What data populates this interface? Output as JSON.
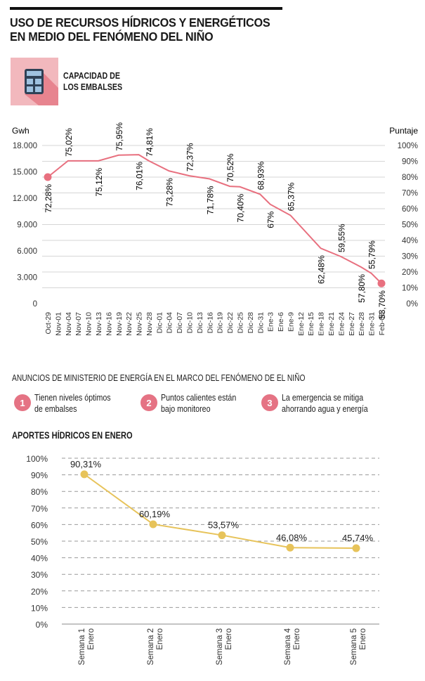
{
  "header": {
    "title_line1": "USO DE RECURSOS HÍDRICOS Y ENERGÉTICOS",
    "title_line2": "EN MEDIO DEL FENÓMENO DEL NIÑO",
    "section_icon": "calculator-icon",
    "section_line1": "CAPACIDAD DE",
    "section_line2": "LOS EMBALSES"
  },
  "colors": {
    "reservoir_line": "#e8707f",
    "inflow_line": "#e7c35a",
    "icon_bg": "#f2b8bd",
    "icon_shadow": "#e7848f",
    "badge": "#e57384"
  },
  "announcements": {
    "title": "ANUNCIOS DE MINISTERIO DE ENERGÍA EN EL MARCO DEL FENÓMENO DE EL NIÑO",
    "items": [
      {
        "number": "1",
        "line1": "Tienen niveles óptimos",
        "line2": "de embalses"
      },
      {
        "number": "2",
        "line1": "Puntos calientes están",
        "line2": "bajo monitoreo"
      },
      {
        "number": "3",
        "line1": "La emergencia se mitiga",
        "line2": "ahorrando agua y energía"
      }
    ]
  },
  "section2_title": "APORTES HÍDRICOS EN ENERO",
  "chart_data": [
    {
      "type": "line",
      "ylabel_left": "Gwh",
      "ylabel_right": "Puntaje",
      "yticks_left": [
        "18.000",
        "15.000",
        "12.000",
        "9.000",
        "6.000",
        "3.000",
        "0"
      ],
      "yticks_right": [
        "100%",
        "90%",
        "80%",
        "70%",
        "60%",
        "50%",
        "40%",
        "30%",
        "20%",
        "10%",
        "0%"
      ],
      "ylim_left": [
        0,
        18000
      ],
      "ylim_right": [
        0,
        100
      ],
      "grid": true,
      "categories": [
        "Oct-29",
        "Nov-01",
        "Nov-04",
        "Nov-07",
        "Nov-10",
        "Nov-13",
        "Nov-16",
        "Nov-19",
        "Nov-22",
        "Nov-25",
        "Nov-28",
        "Dic-01",
        "Dic-04",
        "Dic-07",
        "Dic-10",
        "Dic-13",
        "Dic-16",
        "Dic-19",
        "Dic-22",
        "Dic-25",
        "Dic-28",
        "Dic-31",
        "Ene-3",
        "Ene-6",
        "Ene-9",
        "Ene-12",
        "Ene-15",
        "Ene-18",
        "Ene-21",
        "Ene-24",
        "Ene-27",
        "Ene-28",
        "Ene-31",
        "Feb-08"
      ],
      "series": [
        {
          "points": [
            {
              "x": "Oct-29",
              "y": 14400,
              "label": "72,28%"
            },
            {
              "x": "Nov-04",
              "y": 16250,
              "label": "75,02%"
            },
            {
              "x": "Nov-13",
              "y": 16250,
              "label": "75,12%"
            },
            {
              "x": "Nov-19",
              "y": 16900,
              "label": "75,95%"
            },
            {
              "x": "Nov-25",
              "y": 16950,
              "label": "76,01%"
            },
            {
              "x": "Nov-28",
              "y": 16250,
              "label": "74,81%"
            },
            {
              "x": "Dic-04",
              "y": 15100,
              "label": "73,28%"
            },
            {
              "x": "Dic-10",
              "y": 14550,
              "label": "72,37%"
            },
            {
              "x": "Dic-16",
              "y": 14200,
              "label": "71,78%"
            },
            {
              "x": "Dic-22",
              "y": 13350,
              "label": "70,52%"
            },
            {
              "x": "Dic-25",
              "y": 13300,
              "label": "70,40%"
            },
            {
              "x": "Dic-31",
              "y": 12450,
              "label": "68,93%"
            },
            {
              "x": "Ene-3",
              "y": 11300,
              "label": "67%"
            },
            {
              "x": "Ene-9",
              "y": 10050,
              "label": "65,37%"
            },
            {
              "x": "Ene-18",
              "y": 6300,
              "label": "62,48%"
            },
            {
              "x": "Ene-24",
              "y": 5350,
              "label": "59,55%"
            },
            {
              "x": "Ene-28",
              "y": 4150,
              "label": "57,80%"
            },
            {
              "x": "Ene-31",
              "y": 3450,
              "label": "55,79%"
            },
            {
              "x": "Feb-08",
              "y": 2300,
              "label": "53,70%"
            }
          ]
        }
      ]
    },
    {
      "type": "line",
      "title": "APORTES HÍDRICOS EN ENERO",
      "yticks": [
        "100%",
        "90%",
        "80%",
        "70%",
        "60%",
        "50%",
        "40%",
        "30%",
        "20%",
        "10%",
        "0%"
      ],
      "ylim": [
        0,
        100
      ],
      "grid": true,
      "categories": [
        [
          "Semana 1",
          "Enero"
        ],
        [
          "Semana 2",
          "Enero"
        ],
        [
          "Semana 3",
          "Enero"
        ],
        [
          "Semana 4",
          "Enero"
        ],
        [
          "Semana 5",
          "Enero"
        ]
      ],
      "values": [
        90.31,
        60.19,
        53.57,
        46.08,
        45.74
      ],
      "labels": [
        "90,31%",
        "60,19%",
        "53,57%",
        "46,08%",
        "45,74%"
      ]
    }
  ]
}
